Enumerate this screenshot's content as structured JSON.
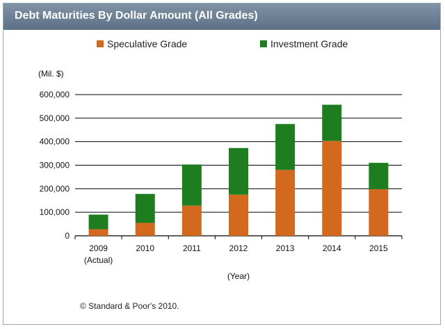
{
  "title": "Debt Maturities By Dollar Amount (All Grades)",
  "footer": "© Standard & Poor's 2010.",
  "colors": {
    "speculative": "#d2691e",
    "investment": "#1e7d1e",
    "header": "#6b7e93"
  },
  "chart_data": {
    "type": "bar",
    "stacked": true,
    "title": "Debt Maturities By Dollar Amount (All Grades)",
    "ylabel": "(Mil. $)",
    "xlabel": "(Year)",
    "ylim": [
      0,
      600000
    ],
    "yticks": [
      0,
      100000,
      200000,
      300000,
      400000,
      500000,
      600000
    ],
    "ytick_labels": [
      "0",
      "100,000",
      "200,000",
      "300,000",
      "400,000",
      "500,000",
      "600,000"
    ],
    "categories": [
      "2009",
      "2010",
      "2011",
      "2012",
      "2013",
      "2014",
      "2015"
    ],
    "category_sublabels": [
      "(Actual)",
      "",
      "",
      "",
      "",
      "",
      ""
    ],
    "legend_position": "top",
    "series": [
      {
        "name": "Speculative Grade",
        "color": "#d2691e",
        "values": [
          28000,
          55000,
          128000,
          175000,
          280000,
          403000,
          198000
        ]
      },
      {
        "name": "Investment Grade",
        "color": "#1e7d1e",
        "values": [
          62000,
          123000,
          175000,
          198000,
          195000,
          154000,
          112000
        ]
      }
    ]
  }
}
